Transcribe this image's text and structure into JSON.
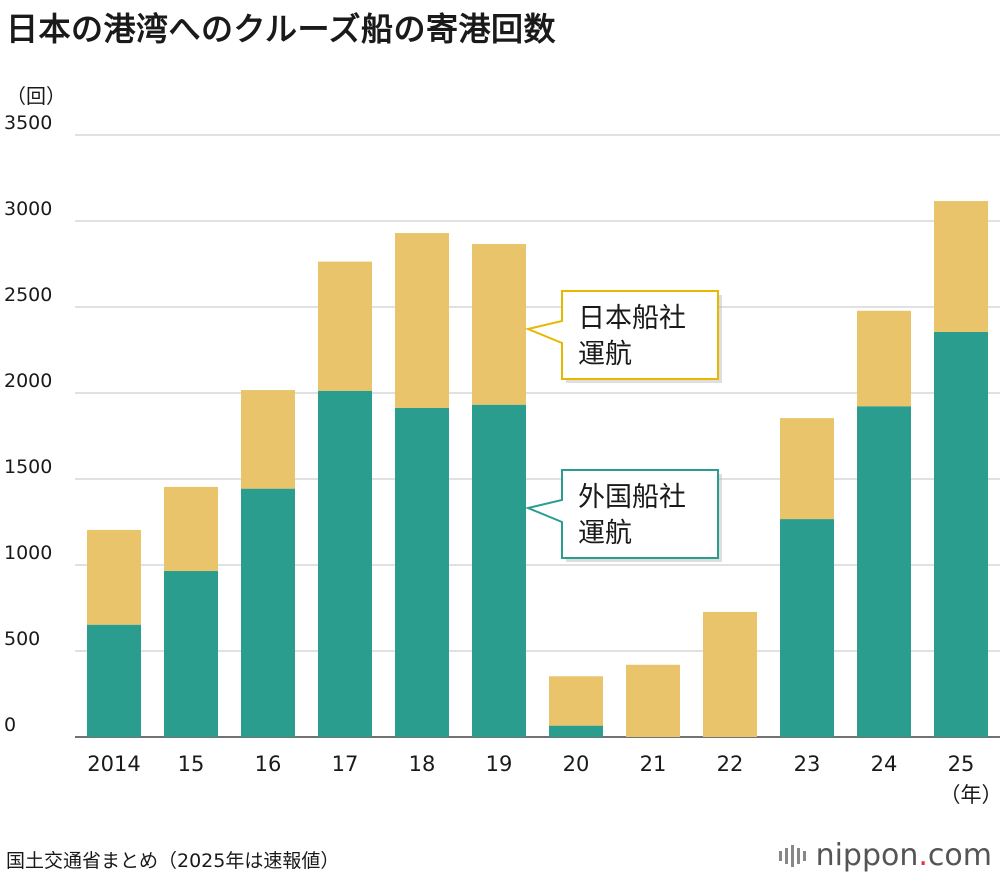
{
  "title": "日本の港湾へのクルーズ船の寄港回数",
  "source": "国土交通省まとめ（2025年は速報値）",
  "logo": {
    "name": "nippon",
    "dot": ".",
    "suffix": "com"
  },
  "chart_data": {
    "type": "bar",
    "stacked": true,
    "ylabel": "（回）",
    "xlabel_unit": "（年）",
    "ylim": [
      0,
      3500
    ],
    "yticks": [
      0,
      500,
      1000,
      1500,
      2000,
      2500,
      3000,
      3500
    ],
    "categories": [
      "2014",
      "15",
      "16",
      "17",
      "18",
      "19",
      "20",
      "21",
      "22",
      "23",
      "24",
      "25"
    ],
    "series": [
      {
        "name": "外国船社運航",
        "color": "#2a9d8f",
        "values": [
          653,
          965,
          1444,
          2013,
          1913,
          1932,
          66,
          0,
          0,
          1267,
          1923,
          2355
        ]
      },
      {
        "name": "日本船社運航",
        "color": "#e9c46a",
        "values": [
          551,
          489,
          573,
          751,
          1017,
          934,
          287,
          420,
          727,
          587,
          555,
          761
        ]
      }
    ],
    "callouts": [
      {
        "series": "日本船社運航",
        "lines": [
          "日本船社",
          "運航"
        ],
        "border": "#e6b800"
      },
      {
        "series": "外国船社運航",
        "lines": [
          "外国船社",
          "運航"
        ],
        "border": "#2a9d8f"
      }
    ]
  }
}
